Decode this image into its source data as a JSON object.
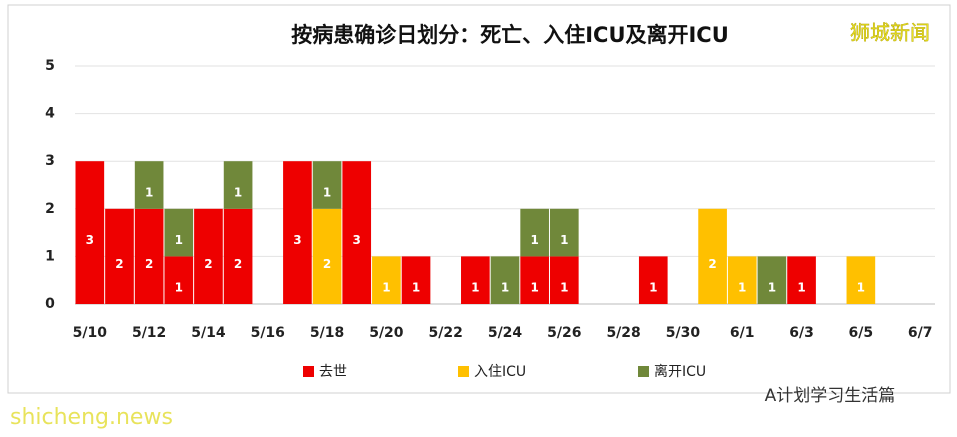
{
  "chart_data": {
    "type": "stacked-bar",
    "title": "按病患确诊日划分：死亡、入住ICU及离开ICU",
    "watermark": "狮城新闻",
    "source_overlay": "shicheng.news",
    "footer": "A计划学习生活篇",
    "categories": [
      "5/10",
      null,
      "5/12",
      null,
      "5/14",
      null,
      "5/16",
      null,
      "5/18",
      null,
      "5/20",
      null,
      "5/22",
      null,
      "5/24",
      null,
      "5/26",
      null,
      "5/28",
      null,
      "5/30",
      null,
      "6/1",
      null,
      "6/3",
      null,
      "6/5",
      null,
      "6/7"
    ],
    "series": [
      {
        "name": "去世",
        "color": "#ee0000",
        "values": [
          3,
          2,
          2,
          1,
          2,
          2,
          null,
          3,
          null,
          3,
          null,
          1,
          null,
          1,
          null,
          1,
          1,
          null,
          null,
          1,
          null,
          null,
          null,
          null,
          1,
          null,
          null,
          null,
          null
        ]
      },
      {
        "name": "入住ICU",
        "color": "#ffc000",
        "values": [
          null,
          null,
          null,
          null,
          null,
          null,
          null,
          null,
          2,
          null,
          1,
          null,
          null,
          null,
          null,
          null,
          null,
          null,
          null,
          null,
          null,
          2,
          1,
          null,
          null,
          null,
          1,
          null,
          null
        ]
      },
      {
        "name": "离开ICU",
        "color": "#70883a",
        "values": [
          null,
          null,
          1,
          1,
          null,
          1,
          null,
          null,
          1,
          null,
          null,
          null,
          null,
          null,
          1,
          1,
          1,
          null,
          null,
          null,
          null,
          null,
          null,
          1,
          null,
          null,
          null,
          null,
          null
        ]
      }
    ],
    "ylim": [
      0,
      5
    ],
    "yticks": [
      0,
      1,
      2,
      3,
      4,
      5
    ],
    "grid": true,
    "legend": "bottom"
  }
}
